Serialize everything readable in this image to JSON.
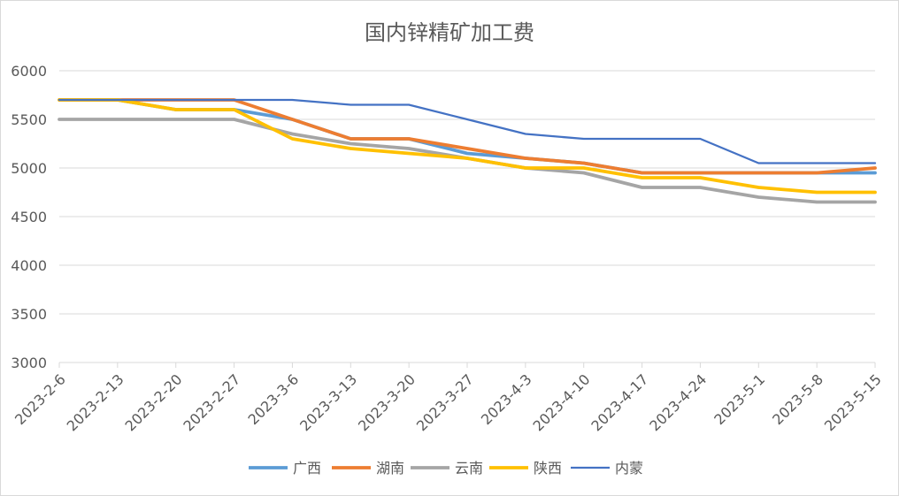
{
  "chart_data": {
    "type": "line",
    "title": "国内锌精矿加工费",
    "xlabel": "",
    "ylabel": "",
    "ylim": [
      3000,
      6000
    ],
    "yticks": [
      3000,
      3500,
      4000,
      4500,
      5000,
      5500,
      6000
    ],
    "grid": true,
    "legend_position": "bottom",
    "categories": [
      "2023-2-6",
      "2023-2-13",
      "2023-2-20",
      "2023-2-27",
      "2023-3-6",
      "2023-3-13",
      "2023-3-20",
      "2023-3-27",
      "2023-4-3",
      "2023-4-10",
      "2023-4-17",
      "2023-4-24",
      "2023-5-1",
      "2023-5-8",
      "2023-5-15"
    ],
    "series": [
      {
        "name": "广西",
        "color": "#5b9bd5",
        "values": [
          5700,
          5700,
          5600,
          5600,
          5500,
          5300,
          5300,
          5150,
          5100,
          5050,
          4950,
          4950,
          4950,
          4950,
          4950
        ]
      },
      {
        "name": "湖南",
        "color": "#ed7d31",
        "values": [
          5700,
          5700,
          5700,
          5700,
          5500,
          5300,
          5300,
          5200,
          5100,
          5050,
          4950,
          4950,
          4950,
          4950,
          5000
        ]
      },
      {
        "name": "云南",
        "color": "#a5a5a5",
        "values": [
          5500,
          5500,
          5500,
          5500,
          5350,
          5250,
          5200,
          5100,
          5000,
          4950,
          4800,
          4800,
          4700,
          4650,
          4650
        ]
      },
      {
        "name": "陕西",
        "color": "#ffc000",
        "values": [
          5700,
          5700,
          5600,
          5600,
          5300,
          5200,
          5150,
          5100,
          5000,
          5000,
          4900,
          4900,
          4800,
          4750,
          4750
        ]
      },
      {
        "name": "内蒙",
        "color": "#4472c4",
        "values": [
          5700,
          5700,
          5700,
          5700,
          5700,
          5650,
          5650,
          5500,
          5350,
          5300,
          5300,
          5300,
          5050,
          5050,
          5050
        ]
      }
    ]
  }
}
